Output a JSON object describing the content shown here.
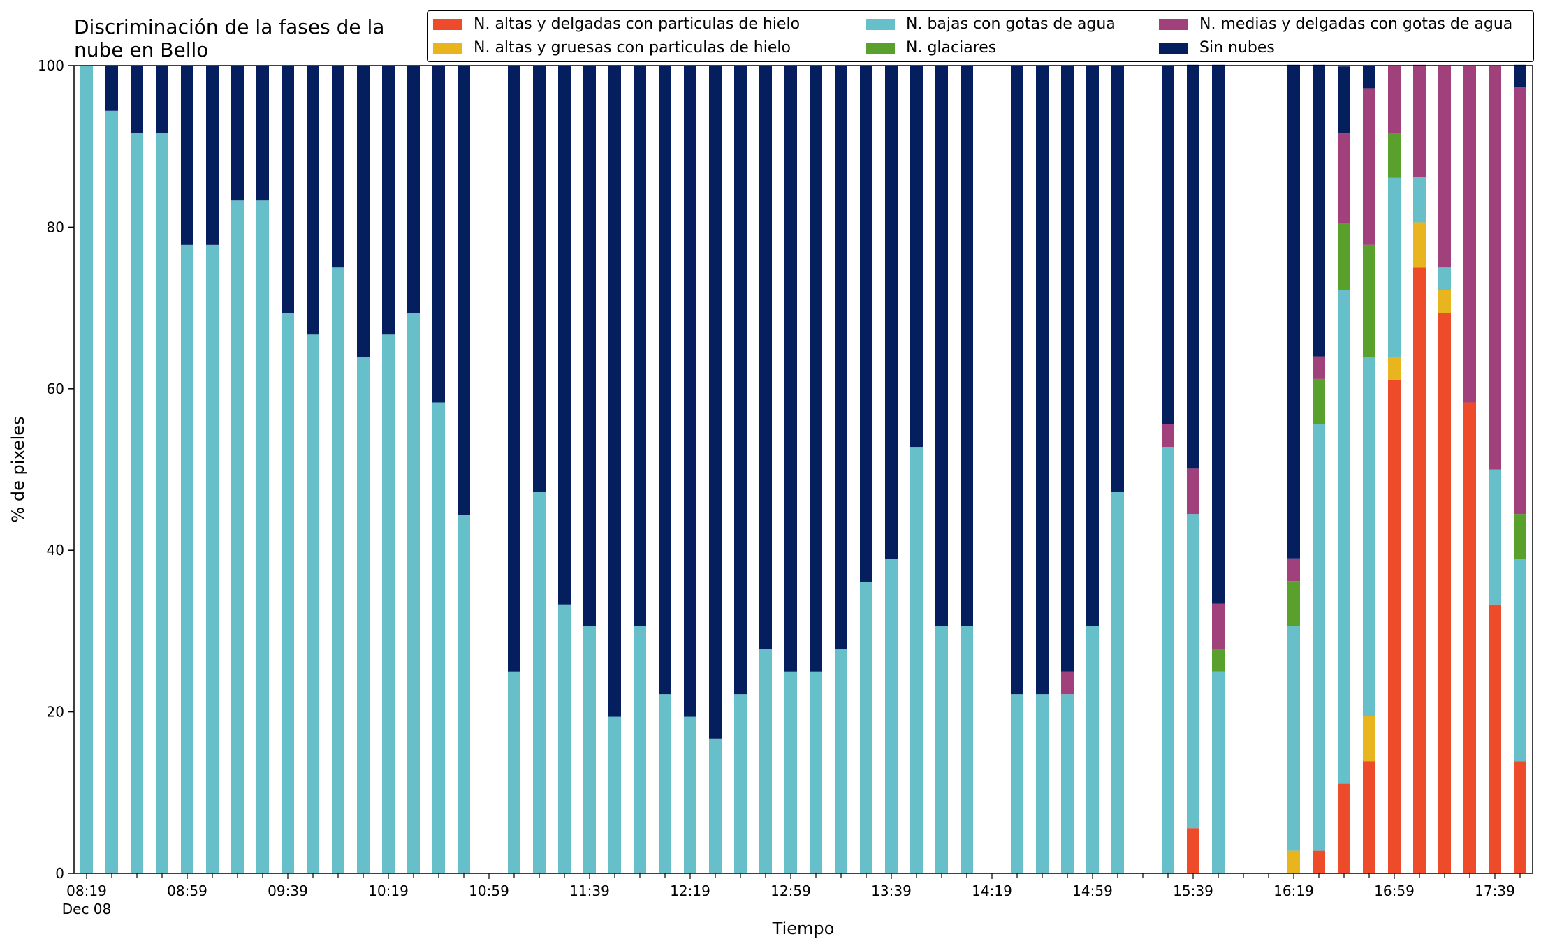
{
  "chart_data": {
    "type": "bar",
    "stacked": true,
    "title": "Discriminación de la fases de la\nnube en Bello",
    "xlabel": "Tiempo",
    "ylabel": "% de pixeles",
    "ylim": [
      0,
      100
    ],
    "yticks": [
      0,
      20,
      40,
      60,
      80,
      100
    ],
    "grid": false,
    "legend_position": "top-right",
    "date_label": "Dec 08",
    "xtick_labels": [
      "08:19",
      "08:59",
      "09:39",
      "10:19",
      "10:59",
      "11:39",
      "12:19",
      "12:59",
      "13:39",
      "14:19",
      "14:59",
      "15:39",
      "16:19",
      "16:59",
      "17:39"
    ],
    "categories": [
      "08:19",
      "08:29",
      "08:39",
      "08:49",
      "08:59",
      "09:09",
      "09:19",
      "09:29",
      "09:39",
      "09:49",
      "09:59",
      "10:09",
      "10:19",
      "10:29",
      "10:39",
      "10:49",
      "10:59",
      "11:09",
      "11:19",
      "11:29",
      "11:39",
      "11:49",
      "11:59",
      "12:09",
      "12:19",
      "12:29",
      "12:39",
      "12:49",
      "12:59",
      "13:09",
      "13:19",
      "13:29",
      "13:39",
      "13:49",
      "13:59",
      "14:09",
      "14:19",
      "14:29",
      "14:39",
      "14:49",
      "14:59",
      "15:09",
      "15:19",
      "15:29",
      "15:39",
      "15:49",
      "15:59",
      "16:09",
      "16:19",
      "16:29",
      "16:39",
      "16:49",
      "16:59",
      "17:09",
      "17:19",
      "17:29",
      "17:39",
      "17:49"
    ],
    "series": [
      {
        "name": "N. altas y delgadas con particulas de hielo",
        "color": "#ee4b2b",
        "values": [
          0,
          0,
          0,
          0,
          0,
          0,
          0,
          0,
          0,
          0,
          0,
          0,
          0,
          0,
          0,
          0,
          null,
          0,
          0,
          0,
          0,
          0,
          0,
          0,
          0,
          0,
          0,
          0,
          0,
          0,
          0,
          0,
          0,
          0,
          0,
          0,
          null,
          0,
          0,
          0,
          0,
          0,
          null,
          0,
          5.6,
          0,
          null,
          null,
          0,
          2.8,
          11.1,
          13.9,
          61.1,
          75.0,
          69.4,
          58.3,
          33.3,
          13.9
        ]
      },
      {
        "name": "N. altas y gruesas con particulas de hielo",
        "color": "#e8b51f",
        "values": [
          0,
          0,
          0,
          0,
          0,
          0,
          0,
          0,
          0,
          0,
          0,
          0,
          0,
          0,
          0,
          0,
          null,
          0,
          0,
          0,
          0,
          0,
          0,
          0,
          0,
          0,
          0,
          0,
          0,
          0,
          0,
          0,
          0,
          0,
          0,
          0,
          null,
          0,
          0,
          0,
          0,
          0,
          null,
          0,
          0,
          0,
          null,
          null,
          2.8,
          0,
          0,
          5.6,
          2.8,
          5.6,
          2.8,
          0,
          0,
          0
        ]
      },
      {
        "name": "N. bajas con gotas de agua",
        "color": "#67bfca",
        "values": [
          100,
          94.4,
          91.7,
          91.7,
          77.8,
          77.8,
          83.3,
          83.3,
          69.4,
          66.7,
          75.0,
          63.9,
          66.7,
          69.4,
          58.3,
          44.4,
          null,
          25.0,
          47.2,
          33.3,
          30.6,
          19.4,
          30.6,
          22.2,
          19.4,
          16.7,
          22.2,
          27.8,
          25.0,
          25.0,
          27.8,
          36.1,
          38.9,
          52.8,
          30.6,
          30.6,
          null,
          22.2,
          22.2,
          22.2,
          30.6,
          47.2,
          null,
          52.8,
          38.9,
          25.0,
          null,
          null,
          27.8,
          52.8,
          61.1,
          44.4,
          22.2,
          5.6,
          2.8,
          0,
          16.7,
          25.0
        ]
      },
      {
        "name": "N. glaciares",
        "color": "#5aa02c",
        "values": [
          0,
          0,
          0,
          0,
          0,
          0,
          0,
          0,
          0,
          0,
          0,
          0,
          0,
          0,
          0,
          0,
          null,
          0,
          0,
          0,
          0,
          0,
          0,
          0,
          0,
          0,
          0,
          0,
          0,
          0,
          0,
          0,
          0,
          0,
          0,
          0,
          null,
          0,
          0,
          0,
          0,
          0,
          null,
          0,
          0,
          2.8,
          null,
          null,
          5.6,
          5.6,
          8.3,
          13.9,
          5.6,
          0,
          0,
          0,
          0,
          5.6
        ]
      },
      {
        "name": "N. medias y delgadas con gotas de agua",
        "color": "#a0417b",
        "values": [
          0,
          0,
          0,
          0,
          0,
          0,
          0,
          0,
          0,
          0,
          0,
          0,
          0,
          0,
          0,
          0,
          null,
          0,
          0,
          0,
          0,
          0,
          0,
          0,
          0,
          0,
          0,
          0,
          0,
          0,
          0,
          0,
          0,
          0,
          0,
          0,
          null,
          0,
          0,
          2.8,
          0,
          0,
          null,
          2.8,
          5.6,
          5.6,
          null,
          null,
          2.8,
          2.8,
          11.1,
          19.4,
          8.3,
          13.9,
          25.0,
          41.7,
          50.0,
          52.8
        ]
      },
      {
        "name": "Sin nubes",
        "color": "#041e5e",
        "values": [
          0,
          5.6,
          8.3,
          8.3,
          22.2,
          22.2,
          16.7,
          16.7,
          30.6,
          33.3,
          25.0,
          36.1,
          33.3,
          30.6,
          41.7,
          55.6,
          null,
          75.0,
          52.8,
          66.7,
          69.4,
          80.6,
          69.4,
          77.8,
          80.6,
          83.3,
          77.8,
          72.2,
          75.0,
          75.0,
          72.2,
          63.9,
          61.1,
          47.2,
          69.4,
          69.4,
          null,
          77.8,
          77.8,
          75.0,
          69.4,
          52.8,
          null,
          44.4,
          50.0,
          66.7,
          null,
          null,
          61.1,
          36.1,
          8.3,
          2.8,
          0,
          0,
          0,
          0,
          0,
          2.8
        ]
      }
    ]
  }
}
